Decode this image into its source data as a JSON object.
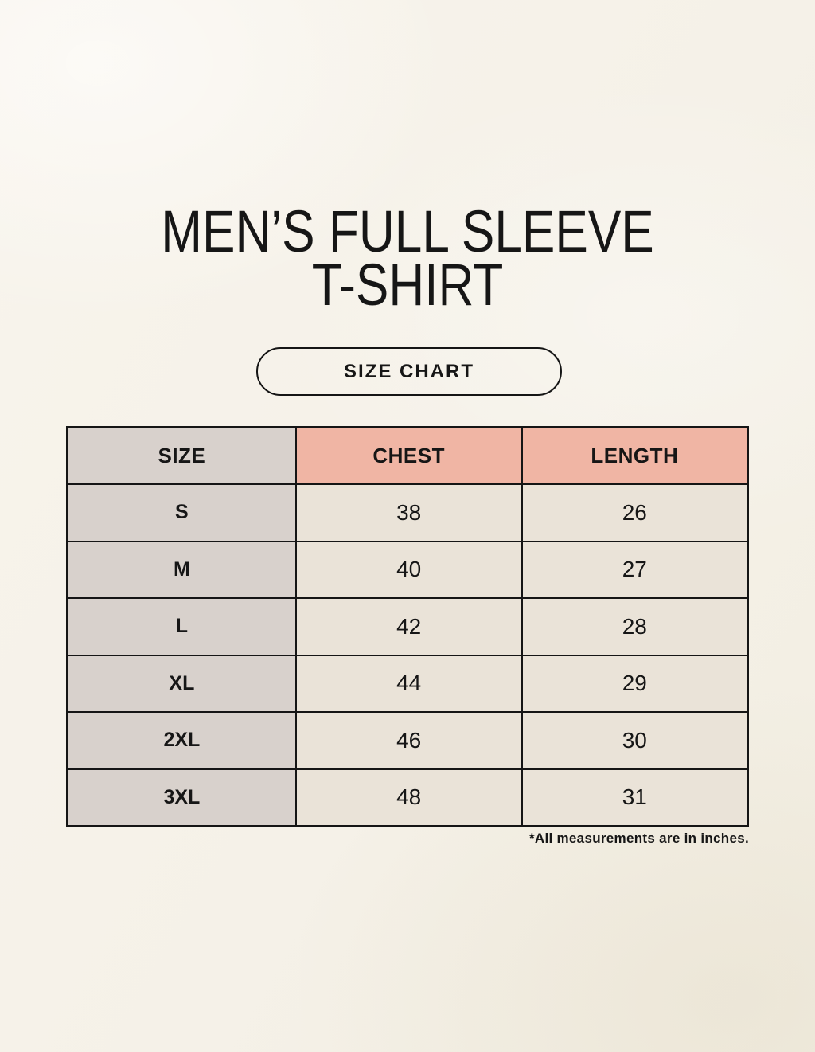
{
  "header": {
    "title_line1": "MEN’S FULL SLEEVE",
    "title_line2": "T-SHIRT",
    "badge_label": "SIZE CHART"
  },
  "footnote": "*All measurements are in inches.",
  "chart_data": {
    "type": "table",
    "title": "Men’s Full Sleeve T-Shirt Size Chart",
    "columns": [
      "SIZE",
      "CHEST",
      "LENGTH"
    ],
    "rows": [
      [
        "S",
        "38",
        "26"
      ],
      [
        "M",
        "40",
        "27"
      ],
      [
        "L",
        "42",
        "28"
      ],
      [
        "XL",
        "44",
        "29"
      ],
      [
        "2XL",
        "46",
        "30"
      ],
      [
        "3XL",
        "48",
        "31"
      ]
    ],
    "units": "inches"
  },
  "colors": {
    "background": "#f6f2e9",
    "table_line": "#151515",
    "size_column_bg": "#d8d1cc",
    "header_pink_bg": "#f0b5a4",
    "data_cell_bg": "#eae3d8",
    "text": "#161616"
  }
}
